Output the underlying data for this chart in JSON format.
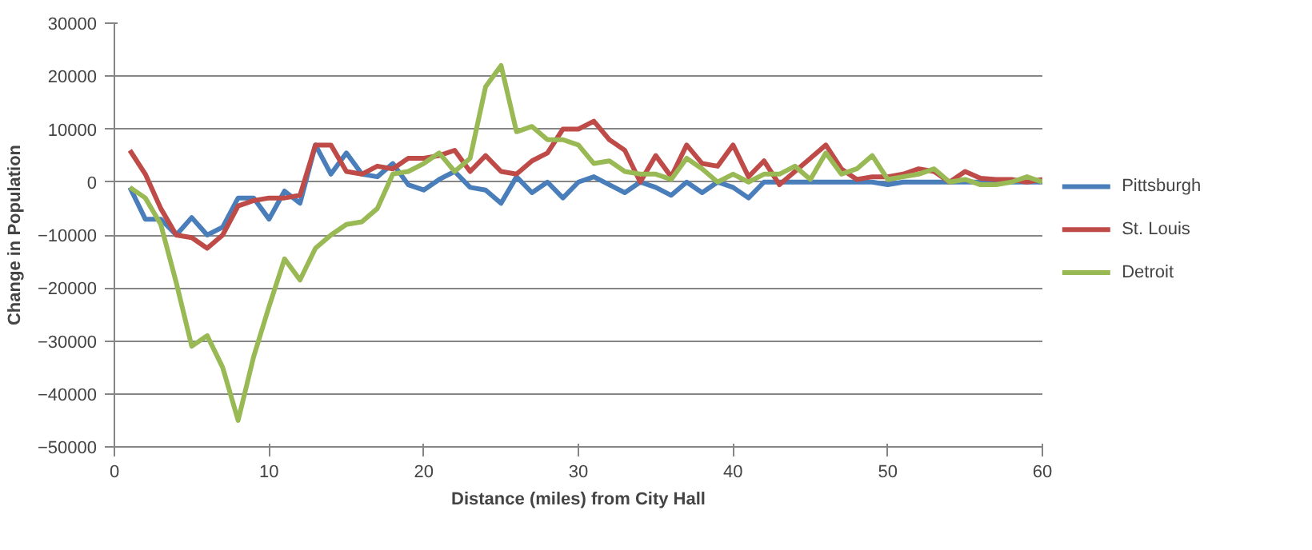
{
  "chart_data": {
    "type": "line",
    "xlabel": "Distance (miles) from City Hall",
    "ylabel": "Change in Population",
    "x": [
      1,
      2,
      3,
      4,
      5,
      6,
      7,
      8,
      9,
      10,
      11,
      12,
      13,
      14,
      15,
      16,
      17,
      18,
      19,
      20,
      21,
      22,
      23,
      24,
      25,
      26,
      27,
      28,
      29,
      30,
      31,
      32,
      33,
      34,
      35,
      36,
      37,
      38,
      39,
      40,
      41,
      42,
      43,
      44,
      45,
      46,
      47,
      48,
      49,
      50,
      51,
      52,
      53,
      54,
      55,
      56,
      57,
      58,
      59,
      60
    ],
    "series": [
      {
        "name": "Pittsburgh",
        "color": "#4a7ebb",
        "values": [
          -1000,
          -7000,
          -7000,
          -10000,
          -6700,
          -10000,
          -8500,
          -3000,
          -3000,
          -7000,
          -1700,
          -4000,
          7000,
          1500,
          5500,
          1500,
          1000,
          3500,
          -500,
          -1500,
          500,
          2000,
          -1000,
          -1500,
          -4000,
          1000,
          -2000,
          0,
          -3000,
          0,
          1000,
          -500,
          -2000,
          0,
          -1000,
          -2500,
          0,
          -2000,
          0,
          -1000,
          -3000,
          0,
          0,
          0,
          0,
          0,
          0,
          0,
          0,
          -500,
          0,
          0,
          0,
          0,
          0,
          0,
          0,
          0,
          0,
          0
        ]
      },
      {
        "name": "St. Louis",
        "color": "#be4b48",
        "values": [
          6000,
          1500,
          -5000,
          -10000,
          -10500,
          -12500,
          -10000,
          -4500,
          -3500,
          -3000,
          -3000,
          -2500,
          7000,
          7000,
          2000,
          1500,
          3000,
          2500,
          4500,
          4500,
          5000,
          6000,
          2000,
          5000,
          2000,
          1500,
          4000,
          5500,
          10000,
          10000,
          11500,
          8000,
          6000,
          0,
          5000,
          1000,
          7000,
          3500,
          3000,
          7000,
          1000,
          4000,
          -500,
          2000,
          4500,
          7000,
          2500,
          500,
          1000,
          1000,
          1500,
          2500,
          2000,
          0,
          2000,
          700,
          500,
          500,
          0,
          500
        ]
      },
      {
        "name": "Detroit",
        "color": "#98b954",
        "values": [
          -1000,
          -3000,
          -8000,
          -19000,
          -31000,
          -29000,
          -35000,
          -45000,
          -33000,
          -23500,
          -14500,
          -18500,
          -12500,
          -10000,
          -8000,
          -7500,
          -5000,
          1500,
          2000,
          3500,
          5500,
          2000,
          4500,
          18000,
          22000,
          9500,
          10500,
          8000,
          8000,
          7000,
          3500,
          4000,
          2000,
          1500,
          1500,
          500,
          4500,
          2500,
          0,
          1500,
          0,
          1500,
          1500,
          3000,
          500,
          5500,
          1500,
          2500,
          5000,
          500,
          1000,
          1500,
          2500,
          0,
          500,
          -500,
          -500,
          0,
          1000,
          0
        ]
      }
    ],
    "xlim": [
      0,
      60
    ],
    "xticks": [
      0,
      10,
      20,
      30,
      40,
      50,
      60
    ],
    "ylim": [
      -50000,
      30000
    ],
    "yticks": [
      -50000,
      -40000,
      -30000,
      -20000,
      -10000,
      0,
      10000,
      20000,
      30000
    ],
    "grid": "y",
    "legend": "right",
    "line_style": "solid",
    "marker": "none"
  }
}
